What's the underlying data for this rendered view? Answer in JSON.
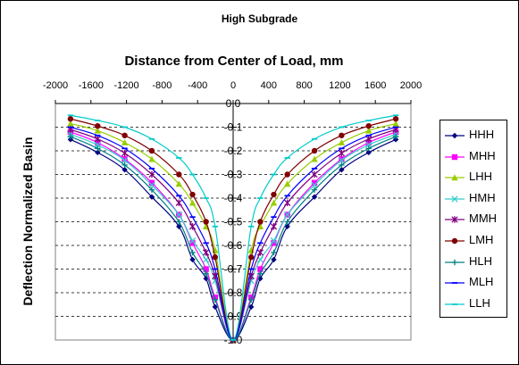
{
  "chart_data": {
    "type": "line",
    "title": "High Subgrade",
    "xlabel": "Distance from Center of Load, mm",
    "ylabel": "Deflection Normalized Basin",
    "xlim": [
      -2000,
      2000
    ],
    "ylim": [
      -1.0,
      0.0
    ],
    "x_ticks": [
      -2000,
      -1600,
      -1200,
      -800,
      -400,
      0,
      400,
      800,
      1200,
      1600,
      2000
    ],
    "x_tick_labels": [
      "-2000",
      "-1600",
      "-1200",
      "-800",
      "-400",
      "0",
      "400",
      "800",
      "1200",
      "1600",
      "2000"
    ],
    "y_ticks": [
      0.0,
      -0.1,
      -0.2,
      -0.3,
      -0.4,
      -0.5,
      -0.6,
      -0.7,
      -0.8,
      -0.9,
      -1.0
    ],
    "y_tick_labels": [
      "0.0",
      "-0.1",
      "-0.2",
      "-0.3",
      "-0.4",
      "-0.5",
      "-0.6",
      "-0.7",
      "-0.8",
      "-0.9",
      "-1.0"
    ],
    "x_axis_position": "top",
    "grid": "horizontal dashed",
    "legend_position": "right",
    "x": [
      -1830,
      -1525,
      -1220,
      -915,
      -610,
      -457,
      -305,
      -203,
      0,
      203,
      305,
      457,
      610,
      915,
      1220,
      1525,
      1830
    ],
    "series": [
      {
        "name": "HHH",
        "color": "#000080",
        "marker": "diamond",
        "values": [
          -0.152,
          -0.207,
          -0.28,
          -0.395,
          -0.52,
          -0.66,
          -0.74,
          -0.86,
          -1.0,
          -0.86,
          -0.74,
          -0.66,
          -0.52,
          -0.395,
          -0.28,
          -0.207,
          -0.152
        ]
      },
      {
        "name": "MHH",
        "color": "#ff00ff",
        "marker": "square",
        "values": [
          -0.12,
          -0.165,
          -0.235,
          -0.335,
          -0.47,
          -0.59,
          -0.7,
          -0.82,
          -1.0,
          -0.82,
          -0.7,
          -0.59,
          -0.47,
          -0.335,
          -0.235,
          -0.165,
          -0.12
        ]
      },
      {
        "name": "LHH",
        "color": "#99cc00",
        "marker": "triangle",
        "values": [
          -0.085,
          -0.115,
          -0.165,
          -0.235,
          -0.34,
          -0.42,
          -0.52,
          -0.62,
          -1.0,
          -0.62,
          -0.52,
          -0.42,
          -0.34,
          -0.235,
          -0.165,
          -0.115,
          -0.085
        ]
      },
      {
        "name": "HMH",
        "color": "#33cccc",
        "marker": "x",
        "values": [
          -0.13,
          -0.175,
          -0.24,
          -0.345,
          -0.47,
          -0.58,
          -0.66,
          -0.75,
          -1.0,
          -0.75,
          -0.66,
          -0.58,
          -0.47,
          -0.345,
          -0.24,
          -0.175,
          -0.13
        ]
      },
      {
        "name": "MMH",
        "color": "#800080",
        "marker": "star",
        "values": [
          -0.11,
          -0.15,
          -0.21,
          -0.3,
          -0.42,
          -0.52,
          -0.63,
          -0.73,
          -1.0,
          -0.73,
          -0.63,
          -0.52,
          -0.42,
          -0.3,
          -0.21,
          -0.15,
          -0.11
        ]
      },
      {
        "name": "LMH",
        "color": "#800000",
        "marker": "circle",
        "values": [
          -0.065,
          -0.095,
          -0.135,
          -0.2,
          -0.3,
          -0.385,
          -0.5,
          -0.65,
          -1.0,
          -0.65,
          -0.5,
          -0.385,
          -0.3,
          -0.2,
          -0.135,
          -0.095,
          -0.065
        ]
      },
      {
        "name": "HLH",
        "color": "#008080",
        "marker": "plus",
        "values": [
          -0.14,
          -0.19,
          -0.26,
          -0.365,
          -0.5,
          -0.63,
          -0.72,
          -0.83,
          -1.0,
          -0.83,
          -0.72,
          -0.63,
          -0.5,
          -0.365,
          -0.26,
          -0.19,
          -0.14
        ]
      },
      {
        "name": "MLH",
        "color": "#0000ff",
        "marker": "dash",
        "values": [
          -0.1,
          -0.135,
          -0.19,
          -0.275,
          -0.39,
          -0.48,
          -0.59,
          -0.7,
          -1.0,
          -0.7,
          -0.59,
          -0.48,
          -0.39,
          -0.275,
          -0.19,
          -0.135,
          -0.1
        ]
      },
      {
        "name": "LLH",
        "color": "#00cccc",
        "marker": "dash",
        "values": [
          -0.05,
          -0.072,
          -0.1,
          -0.15,
          -0.23,
          -0.3,
          -0.4,
          -0.52,
          -1.0,
          -0.52,
          -0.4,
          -0.3,
          -0.23,
          -0.15,
          -0.1,
          -0.072,
          -0.05
        ]
      }
    ]
  }
}
